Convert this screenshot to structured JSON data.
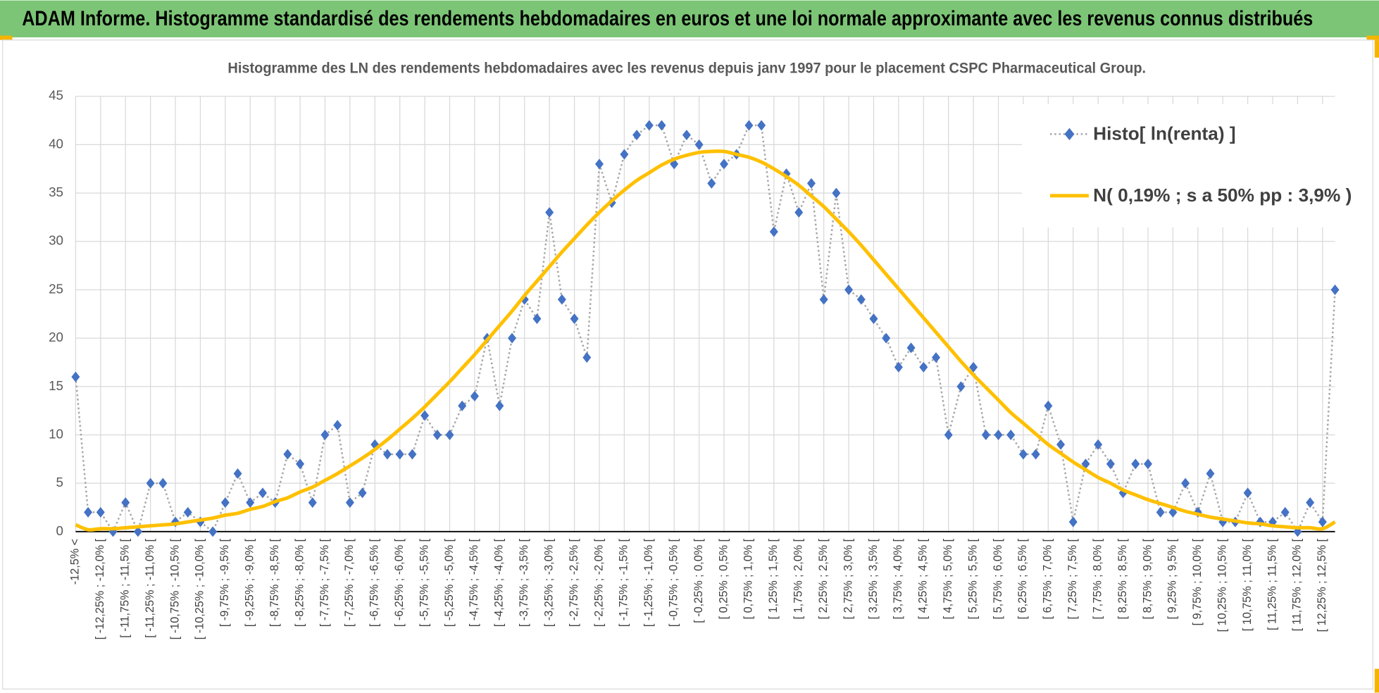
{
  "header": {
    "title": "ADAM Informe. Histogramme standardisé des rendements hebdomadaires en euros et une loi normale approximante avec les revenus connus distribués"
  },
  "chart_data": {
    "type": "line",
    "title": "Histogramme des LN des rendements hebdomadaires avec les revenus depuis janv 1997 pour le placement CSPC Pharmaceutical Group.",
    "categories": [
      "-12,5% <",
      null,
      "[ -12,25% ; -12,0% [",
      null,
      "[ -11,75% ; -11,5% [",
      null,
      "[ -11,25% ; -11,0% [",
      null,
      "[ -10,75% ; -10,5% [",
      null,
      "[ -10,25% ; -10,0% [",
      null,
      "[ -9,75% ; -9,5% [",
      null,
      "[ -9,25% ; -9,0% [",
      null,
      "[ -8,75% ; -8,5% [",
      null,
      "[ -8,25% ; -8,0% [",
      null,
      "[ -7,75% ; -7,5% [",
      null,
      "[ -7,25% ; -7,0% [",
      null,
      "[ -6,75% ; -6,5% [",
      null,
      "[ -6,25% ; -6,0% [",
      null,
      "[ -5,75% ; -5,5% [",
      null,
      "[ -5,25% ; -5,0% [",
      null,
      "[ -4,75% ; -4,5% [",
      null,
      "[ -4,25% ; -4,0% [",
      null,
      "[ -3,75% ; -3,5% [",
      null,
      "[ -3,25% ; -3,0% [",
      null,
      "[ -2,75% ; -2,5% [",
      null,
      "[ -2,25% ; -2,0% [",
      null,
      "[ -1,75% ; -1,5% [",
      null,
      "[ -1,25% ; -1,0% [",
      null,
      "[ -0,75% ; -0,5% [",
      null,
      "[ -0,25% ; 0,0% [",
      null,
      "[ 0,25% ; 0,5% [",
      null,
      "[ 0,75% ; 1,0% [",
      null,
      "[ 1,25% ; 1,5% [",
      null,
      "[ 1,75% ; 2,0% [",
      null,
      "[ 2,25% ; 2,5% [",
      null,
      "[ 2,75% ; 3,0% [",
      null,
      "[ 3,25% ; 3,5% [",
      null,
      "[ 3,75% ; 4,0% [",
      null,
      "[ 4,25% ; 4,5% [",
      null,
      "[ 4,75% ; 5,0% [",
      null,
      "[ 5,25% ; 5,5% [",
      null,
      "[ 5,75% ; 6,0% [",
      null,
      "[ 6,25% ; 6,5% [",
      null,
      "[ 6,75% ; 7,0% [",
      null,
      "[ 7,25% ; 7,5% [",
      null,
      "[ 7,75% ; 8,0% [",
      null,
      "[ 8,25% ; 8,5% [",
      null,
      "[ 8,75% ; 9,0% [",
      null,
      "[ 9,25% ; 9,5% [",
      null,
      "[ 9,75% ; 10,0% [",
      null,
      "[ 10,25% ; 10,5% [",
      null,
      "[ 10,75% ; 11,0% [",
      null,
      "[ 11,25% ; 11,5% [",
      null,
      "[ 11,75% ; 12,0% [",
      null,
      "[ 12,25% ; 12,5% [",
      null
    ],
    "series": [
      {
        "name": "Histo[ ln(renta) ]",
        "color": "#4472c4",
        "line_color": "#a6a6a6",
        "marker": "diamond",
        "line_style": "dotted",
        "values": [
          16,
          2,
          2,
          0,
          3,
          0,
          5,
          5,
          1,
          2,
          1,
          0,
          3,
          6,
          3,
          4,
          3,
          8,
          7,
          3,
          10,
          11,
          3,
          4,
          9,
          8,
          8,
          8,
          12,
          10,
          10,
          13,
          14,
          20,
          13,
          20,
          24,
          22,
          33,
          24,
          22,
          18,
          38,
          34,
          39,
          41,
          42,
          42,
          38,
          41,
          40,
          36,
          38,
          39,
          42,
          42,
          31,
          37,
          33,
          36,
          24,
          35,
          25,
          24,
          22,
          20,
          17,
          19,
          17,
          18,
          10,
          15,
          17,
          10,
          10,
          10,
          8,
          8,
          13,
          9,
          1,
          7,
          9,
          7,
          4,
          7,
          7,
          2,
          2,
          5,
          2,
          6,
          1,
          1,
          4,
          1,
          1,
          2,
          0,
          3,
          1,
          25
        ]
      },
      {
        "name": "N( 0,19% ; s a 50% pp : 3,9% )",
        "color": "#ffc000",
        "smooth": true,
        "values": [
          0.7,
          0.2,
          0.3,
          0.3,
          0.4,
          0.5,
          0.6,
          0.7,
          0.8,
          1.0,
          1.2,
          1.4,
          1.7,
          1.9,
          2.3,
          2.6,
          3.1,
          3.5,
          4.1,
          4.6,
          5.3,
          6.0,
          6.8,
          7.6,
          8.5,
          9.5,
          10.6,
          11.7,
          12.9,
          14.2,
          15.5,
          16.9,
          18.3,
          19.8,
          21.3,
          22.8,
          24.4,
          25.9,
          27.4,
          28.9,
          30.3,
          31.7,
          33.0,
          34.2,
          35.3,
          36.3,
          37.1,
          37.9,
          38.5,
          38.9,
          39.2,
          39.3,
          39.3,
          39.0,
          38.7,
          38.2,
          37.5,
          36.7,
          35.8,
          34.7,
          33.6,
          32.3,
          31.0,
          29.6,
          28.1,
          26.6,
          25.1,
          23.6,
          22.1,
          20.6,
          19.1,
          17.6,
          16.2,
          14.9,
          13.6,
          12.3,
          11.2,
          10.1,
          9.0,
          8.1,
          7.2,
          6.4,
          5.6,
          5.0,
          4.3,
          3.8,
          3.3,
          2.9,
          2.5,
          2.1,
          1.8,
          1.5,
          1.3,
          1.1,
          0.9,
          0.8,
          0.6,
          0.5,
          0.4,
          0.4,
          0.3,
          1.0
        ]
      }
    ],
    "ylim": [
      0,
      45
    ],
    "yticks": [
      0,
      5,
      10,
      15,
      20,
      25,
      30,
      35,
      40,
      45
    ],
    "grid": true,
    "legend": "upper right"
  }
}
